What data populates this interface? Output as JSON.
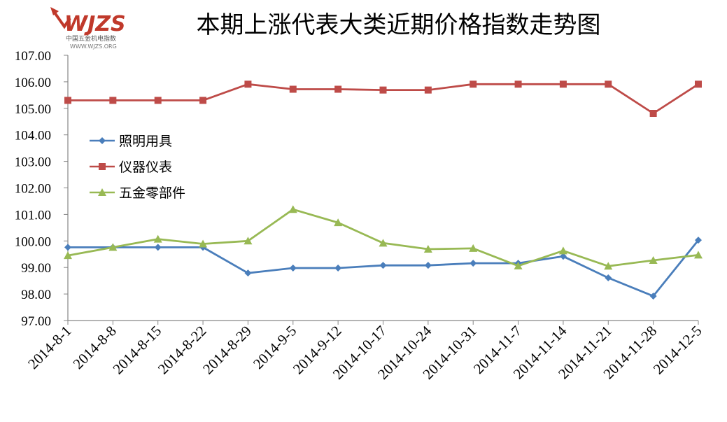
{
  "title": "本期上涨代表大类近期价格指数走势图",
  "logo": {
    "brand": "WJZS",
    "subtitle": "中国五金机电指数",
    "url": "WWW.WJZS.ORG"
  },
  "chart_data": {
    "type": "line",
    "title": "本期上涨代表大类近期价格指数走势图",
    "xlabel": "",
    "ylabel": "",
    "ylim": [
      97,
      107
    ],
    "yticks": [
      "97.00",
      "98.00",
      "99.00",
      "100.00",
      "101.00",
      "102.00",
      "103.00",
      "104.00",
      "105.00",
      "106.00",
      "107.00"
    ],
    "grid": false,
    "legend_position": "left",
    "categories": [
      "2014-8-1",
      "2014-8-8",
      "2014-8-15",
      "2014-8-22",
      "2014-8-29",
      "2014-9-5",
      "2014-9-12",
      "2014-10-17",
      "2014-10-24",
      "2014-10-31",
      "2014-11-7",
      "2014-11-14",
      "2014-11-21",
      "2014-11-28",
      "2014-12-5"
    ],
    "series": [
      {
        "name": "照明用具",
        "color": "#4a7ebb",
        "marker": "diamond",
        "values": [
          99.76,
          99.76,
          99.76,
          99.76,
          98.79,
          98.98,
          98.98,
          99.08,
          99.08,
          99.16,
          99.16,
          99.42,
          98.61,
          97.92,
          100.03
        ]
      },
      {
        "name": "仪器仪表",
        "color": "#be4b48",
        "marker": "square",
        "values": [
          105.3,
          105.3,
          105.3,
          105.3,
          105.91,
          105.72,
          105.72,
          105.69,
          105.69,
          105.91,
          105.91,
          105.91,
          105.91,
          104.81,
          105.91
        ]
      },
      {
        "name": "五金零部件",
        "color": "#98b954",
        "marker": "triangle",
        "values": [
          99.45,
          99.76,
          100.07,
          99.89,
          100.0,
          101.19,
          100.69,
          99.92,
          99.69,
          99.72,
          99.06,
          99.63,
          99.05,
          99.27,
          99.47
        ]
      }
    ]
  }
}
